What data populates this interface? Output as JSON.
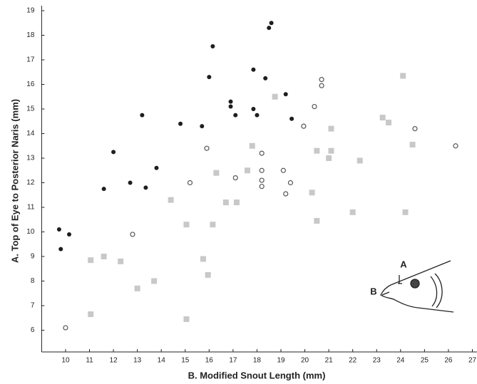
{
  "chart_data": {
    "type": "scatter",
    "xlabel": "B. Modified Snout Length (mm)",
    "ylabel": "A. Top of Eye to Posterior Naris (mm)",
    "xlim": [
      9,
      27
    ],
    "xticks": [
      10,
      11,
      12,
      13,
      14,
      15,
      16,
      17,
      18,
      19,
      20,
      21,
      22,
      23,
      24,
      25,
      26,
      27
    ],
    "ylim": [
      5,
      19
    ],
    "yticks": [
      6,
      7,
      8,
      9,
      10,
      11,
      12,
      13,
      14,
      15,
      16,
      17,
      18,
      19
    ],
    "grid": false,
    "annotations": [
      "A",
      "B"
    ],
    "series": [
      {
        "color": "#1e1e1e",
        "marker": "filled",
        "x": [
          9.73,
          9.8,
          10.15,
          11.6,
          12.0,
          12.7,
          13.2,
          13.35,
          13.8,
          14.8,
          15.7,
          16.0,
          16.15,
          16.9,
          16.9,
          17.1,
          17.85,
          17.85,
          18.0,
          18.35,
          18.5,
          18.6,
          19.2,
          19.45
        ],
        "y": [
          10.1,
          9.3,
          9.9,
          11.75,
          13.25,
          12.0,
          14.75,
          11.8,
          12.6,
          14.4,
          14.3,
          16.3,
          17.55,
          15.3,
          15.1,
          14.75,
          16.6,
          15.0,
          14.75,
          16.25,
          18.3,
          18.5,
          15.6,
          14.6
        ]
      },
      {
        "color": "#555555",
        "marker": "open",
        "x": [
          10.0,
          12.8,
          15.2,
          15.9,
          17.1,
          18.2,
          18.2,
          18.2,
          18.2,
          19.1,
          19.2,
          19.4,
          19.95,
          20.4,
          20.7,
          20.7,
          24.6,
          26.3
        ],
        "y": [
          6.1,
          9.9,
          12.0,
          13.4,
          12.2,
          13.2,
          12.5,
          12.1,
          11.85,
          12.5,
          11.55,
          12.0,
          14.3,
          15.1,
          16.2,
          15.95,
          14.2,
          13.5
        ]
      },
      {
        "color": "#c8c8c8",
        "marker": "square",
        "x": [
          11.05,
          11.6,
          12.3,
          13.0,
          13.7,
          14.4,
          15.05,
          15.05,
          15.75,
          15.95,
          16.15,
          16.3,
          16.7,
          17.15,
          17.6,
          17.8,
          18.75,
          20.3,
          20.5,
          20.5,
          21.0,
          21.1,
          21.1,
          22.0,
          22.3,
          23.25,
          23.5,
          24.1,
          24.2,
          24.5,
          11.05
        ],
        "y": [
          8.85,
          9.0,
          8.8,
          7.7,
          8.0,
          11.3,
          10.3,
          6.45,
          8.9,
          8.25,
          10.3,
          12.4,
          11.2,
          11.2,
          12.5,
          13.5,
          15.5,
          11.6,
          13.3,
          10.45,
          13.0,
          13.3,
          14.2,
          10.8,
          12.9,
          14.65,
          14.45,
          16.35,
          10.8,
          13.55,
          6.65
        ]
      }
    ]
  }
}
